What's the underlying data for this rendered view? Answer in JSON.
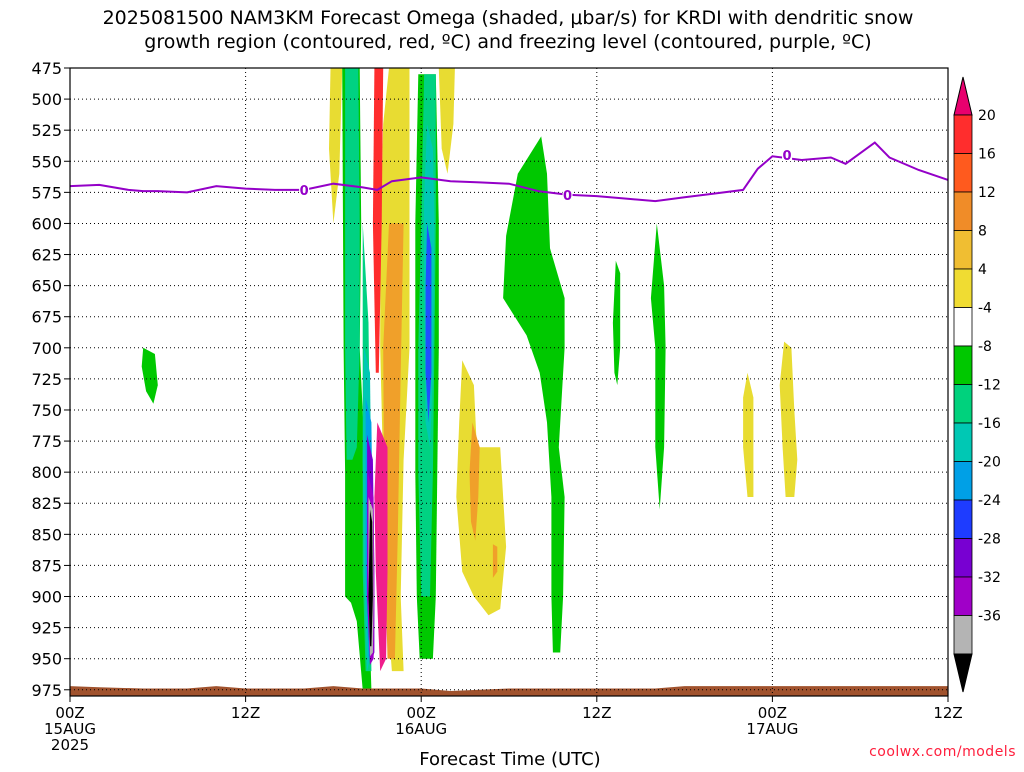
{
  "title": {
    "line1": "2025081500 NAM3KM Forecast Omega (shaded, μbar/s) for KRDI with dendritic snow",
    "line2": "growth region (contoured, red, ºC) and freezing level (contoured, purple, ºC)"
  },
  "xlabel": "Forecast Time (UTC)",
  "credit": "coolwx.com/models",
  "chart_data": {
    "type": "heatmap",
    "x_unit": "forecast hour from 2025-08-15 00Z",
    "xlim": [
      0,
      60
    ],
    "y_unit": "hPa",
    "ylim": [
      980,
      475
    ],
    "y_ticks": [
      475,
      500,
      525,
      550,
      575,
      600,
      625,
      650,
      675,
      700,
      725,
      750,
      775,
      800,
      825,
      850,
      875,
      900,
      925,
      950,
      975
    ],
    "x_ticks": [
      {
        "hour": 0,
        "label": "00Z",
        "sub": "15AUG",
        "sub2": "2025"
      },
      {
        "hour": 12,
        "label": "12Z",
        "sub": "",
        "sub2": ""
      },
      {
        "hour": 24,
        "label": "00Z",
        "sub": "16AUG",
        "sub2": ""
      },
      {
        "hour": 36,
        "label": "12Z",
        "sub": "",
        "sub2": ""
      },
      {
        "hour": 48,
        "label": "00Z",
        "sub": "17AUG",
        "sub2": ""
      },
      {
        "hour": 60,
        "label": "12Z",
        "sub": "",
        "sub2": ""
      }
    ],
    "grid": true,
    "colorbar": {
      "levels": [
        "20",
        "16",
        "12",
        "8",
        "4",
        "-4",
        "-8",
        "-12",
        "-16",
        "-20",
        "-24",
        "-28",
        "-32",
        "-36"
      ],
      "colors": [
        "#e8006e",
        "#ff2d2d",
        "#ff5a1e",
        "#f08c28",
        "#f0be32",
        "#f0dc32",
        "#ffffff",
        "#00c800",
        "#00d27d",
        "#00c8b4",
        "#00a0e6",
        "#1e3cff",
        "#7800d2",
        "#a000c8",
        "#b4b4b4",
        "#000000"
      ]
    },
    "omega_regions": [
      {
        "name": "yellow-a",
        "color": "#e8dc32",
        "pts": [
          [
            17.8,
            475
          ],
          [
            18.6,
            475
          ],
          [
            18.4,
            560
          ],
          [
            18.0,
            600
          ],
          [
            17.7,
            540
          ]
        ]
      },
      {
        "name": "yellow-b",
        "color": "#e8dc32",
        "pts": [
          [
            21.8,
            475
          ],
          [
            23.2,
            475
          ],
          [
            23.2,
            600
          ],
          [
            23.2,
            700
          ],
          [
            22.8,
            790
          ],
          [
            22.6,
            900
          ],
          [
            22.8,
            960
          ],
          [
            22.0,
            960
          ],
          [
            21.6,
            900
          ],
          [
            21.4,
            800
          ],
          [
            21.2,
            700
          ],
          [
            21.2,
            600
          ],
          [
            21.4,
            520
          ]
        ]
      },
      {
        "name": "yellow-c",
        "color": "#e8dc32",
        "pts": [
          [
            25.2,
            475
          ],
          [
            26.3,
            475
          ],
          [
            26.2,
            520
          ],
          [
            25.8,
            560
          ],
          [
            25.4,
            540
          ]
        ]
      },
      {
        "name": "yellow-d",
        "color": "#e8dc32",
        "pts": [
          [
            26.8,
            710
          ],
          [
            27.6,
            730
          ],
          [
            27.8,
            780
          ],
          [
            29.4,
            780
          ],
          [
            29.8,
            860
          ],
          [
            29.4,
            910
          ],
          [
            28.6,
            915
          ],
          [
            27.6,
            900
          ],
          [
            26.8,
            880
          ],
          [
            26.4,
            820
          ],
          [
            26.6,
            760
          ]
        ]
      },
      {
        "name": "yellow-e",
        "color": "#e8dc32",
        "pts": [
          [
            46.3,
            720
          ],
          [
            46.7,
            740
          ],
          [
            46.7,
            820
          ],
          [
            46.3,
            820
          ],
          [
            46.0,
            780
          ],
          [
            46.0,
            740
          ]
        ]
      },
      {
        "name": "yellow-f",
        "color": "#e8dc32",
        "pts": [
          [
            48.8,
            695
          ],
          [
            49.3,
            700
          ],
          [
            49.5,
            750
          ],
          [
            49.7,
            790
          ],
          [
            49.5,
            820
          ],
          [
            48.9,
            820
          ],
          [
            48.7,
            780
          ],
          [
            48.5,
            730
          ]
        ]
      },
      {
        "name": "orange-a",
        "color": "#f0a02a",
        "pts": [
          [
            21.8,
            600
          ],
          [
            22.8,
            600
          ],
          [
            22.6,
            720
          ],
          [
            22.4,
            850
          ],
          [
            22.2,
            950
          ],
          [
            21.7,
            950
          ],
          [
            21.5,
            860
          ],
          [
            21.4,
            700
          ]
        ]
      },
      {
        "name": "orange-b",
        "color": "#f0a02a",
        "pts": [
          [
            27.5,
            760
          ],
          [
            28.0,
            780
          ],
          [
            27.9,
            820
          ],
          [
            27.7,
            855
          ],
          [
            27.4,
            840
          ],
          [
            27.3,
            800
          ]
        ]
      },
      {
        "name": "orange-c",
        "color": "#f0a02a",
        "pts": [
          [
            28.9,
            858
          ],
          [
            29.2,
            860
          ],
          [
            29.2,
            880
          ],
          [
            28.9,
            885
          ]
        ]
      },
      {
        "name": "red-col",
        "color": "#ff2d2d",
        "pts": [
          [
            20.8,
            475
          ],
          [
            21.4,
            475
          ],
          [
            21.3,
            600
          ],
          [
            21.1,
            720
          ],
          [
            20.9,
            720
          ],
          [
            20.7,
            600
          ]
        ]
      },
      {
        "name": "pink-col",
        "color": "#f01e8c",
        "pts": [
          [
            21.0,
            760
          ],
          [
            21.7,
            780
          ],
          [
            21.7,
            880
          ],
          [
            21.6,
            950
          ],
          [
            21.2,
            960
          ],
          [
            20.9,
            880
          ],
          [
            20.8,
            820
          ]
        ]
      },
      {
        "name": "green-a",
        "color": "#00c800",
        "pts": [
          [
            5.0,
            700
          ],
          [
            5.8,
            705
          ],
          [
            6.0,
            730
          ],
          [
            5.7,
            745
          ],
          [
            5.2,
            735
          ],
          [
            4.9,
            715
          ]
        ]
      },
      {
        "name": "green-b",
        "color": "#00c800",
        "pts": [
          [
            18.6,
            475
          ],
          [
            19.8,
            475
          ],
          [
            19.9,
            600
          ],
          [
            19.8,
            700
          ],
          [
            20.2,
            800
          ],
          [
            20.4,
            900
          ],
          [
            20.6,
            975
          ],
          [
            20.0,
            975
          ],
          [
            19.6,
            920
          ],
          [
            19.2,
            905
          ],
          [
            18.8,
            900
          ],
          [
            18.8,
            800
          ],
          [
            18.7,
            700
          ]
        ]
      },
      {
        "name": "green-c",
        "color": "#00c800",
        "pts": [
          [
            23.8,
            480
          ],
          [
            25.0,
            480
          ],
          [
            25.2,
            600
          ],
          [
            25.2,
            700
          ],
          [
            25.1,
            800
          ],
          [
            25.0,
            900
          ],
          [
            24.8,
            950
          ],
          [
            23.9,
            950
          ],
          [
            23.7,
            900
          ],
          [
            23.6,
            800
          ],
          [
            23.6,
            700
          ],
          [
            23.6,
            600
          ]
        ]
      },
      {
        "name": "green-d",
        "color": "#00c800",
        "pts": [
          [
            29.8,
            610
          ],
          [
            30.6,
            560
          ],
          [
            32.2,
            530
          ],
          [
            32.6,
            560
          ],
          [
            32.8,
            620
          ],
          [
            33.8,
            660
          ],
          [
            33.8,
            700
          ],
          [
            33.4,
            780
          ],
          [
            33.8,
            820
          ],
          [
            33.7,
            900
          ],
          [
            33.5,
            945
          ],
          [
            33.0,
            945
          ],
          [
            32.9,
            900
          ],
          [
            32.9,
            820
          ],
          [
            32.6,
            760
          ],
          [
            32.1,
            720
          ],
          [
            31.2,
            690
          ],
          [
            29.6,
            660
          ]
        ]
      },
      {
        "name": "green-e",
        "color": "#00c800",
        "pts": [
          [
            37.3,
            630
          ],
          [
            37.6,
            640
          ],
          [
            37.6,
            700
          ],
          [
            37.4,
            730
          ],
          [
            37.2,
            720
          ],
          [
            37.1,
            680
          ]
        ]
      },
      {
        "name": "green-f",
        "color": "#00c800",
        "pts": [
          [
            40.1,
            600
          ],
          [
            40.6,
            650
          ],
          [
            40.7,
            700
          ],
          [
            40.6,
            780
          ],
          [
            40.3,
            830
          ],
          [
            40.0,
            780
          ],
          [
            40.0,
            700
          ],
          [
            39.7,
            660
          ]
        ]
      },
      {
        "name": "teal-a",
        "color": "#00d282",
        "pts": [
          [
            18.8,
            475
          ],
          [
            19.7,
            475
          ],
          [
            19.8,
            600
          ],
          [
            19.8,
            700
          ],
          [
            19.6,
            780
          ],
          [
            19.3,
            790
          ],
          [
            18.9,
            790
          ],
          [
            18.8,
            700
          ],
          [
            18.8,
            600
          ]
        ]
      },
      {
        "name": "teal-b",
        "color": "#00d282",
        "pts": [
          [
            20.0,
            600
          ],
          [
            20.4,
            680
          ],
          [
            20.5,
            780
          ],
          [
            20.5,
            880
          ],
          [
            20.6,
            960
          ],
          [
            20.2,
            960
          ],
          [
            20.0,
            880
          ],
          [
            20.0,
            760
          ]
        ]
      },
      {
        "name": "teal-c",
        "color": "#00d282",
        "pts": [
          [
            24.2,
            480
          ],
          [
            25.0,
            480
          ],
          [
            25.0,
            600
          ],
          [
            24.9,
            700
          ],
          [
            24.8,
            800
          ],
          [
            24.6,
            900
          ],
          [
            24.0,
            900
          ],
          [
            23.8,
            800
          ],
          [
            23.8,
            700
          ],
          [
            24.0,
            600
          ]
        ]
      },
      {
        "name": "cyan-a",
        "color": "#00c8b4",
        "pts": [
          [
            20.1,
            700
          ],
          [
            20.5,
            720
          ],
          [
            20.6,
            820
          ],
          [
            20.7,
            940
          ],
          [
            20.3,
            960
          ],
          [
            20.1,
            880
          ],
          [
            20.0,
            790
          ]
        ]
      },
      {
        "name": "cyan-b",
        "color": "#00c8b4",
        "pts": [
          [
            24.4,
            520
          ],
          [
            24.8,
            540
          ],
          [
            24.9,
            600
          ],
          [
            24.8,
            720
          ],
          [
            24.6,
            780
          ],
          [
            24.3,
            760
          ],
          [
            24.2,
            650
          ],
          [
            24.2,
            580
          ]
        ]
      },
      {
        "name": "blue-a",
        "color": "#00a0e6",
        "pts": [
          [
            20.2,
            740
          ],
          [
            20.6,
            760
          ],
          [
            20.7,
            860
          ],
          [
            20.7,
            940
          ],
          [
            20.4,
            950
          ],
          [
            20.2,
            880
          ]
        ]
      },
      {
        "name": "blue-b",
        "color": "#1e50ff",
        "pts": [
          [
            24.4,
            600
          ],
          [
            24.7,
            620
          ],
          [
            24.7,
            720
          ],
          [
            24.5,
            760
          ],
          [
            24.3,
            720
          ],
          [
            24.3,
            650
          ]
        ]
      },
      {
        "name": "purple-a",
        "color": "#7800d2",
        "pts": [
          [
            20.3,
            770
          ],
          [
            20.7,
            790
          ],
          [
            20.8,
            880
          ],
          [
            20.8,
            945
          ],
          [
            20.5,
            955
          ],
          [
            20.3,
            900
          ]
        ]
      },
      {
        "name": "magenta-a",
        "color": "#a000c8",
        "pts": [
          [
            20.35,
            800
          ],
          [
            20.75,
            820
          ],
          [
            20.8,
            900
          ],
          [
            20.75,
            950
          ],
          [
            20.5,
            955
          ],
          [
            20.3,
            900
          ]
        ]
      },
      {
        "name": "gray-a",
        "color": "#b4b4b4",
        "pts": [
          [
            20.4,
            820
          ],
          [
            20.7,
            830
          ],
          [
            20.75,
            900
          ],
          [
            20.7,
            945
          ],
          [
            20.5,
            948
          ],
          [
            20.4,
            900
          ]
        ]
      },
      {
        "name": "black-a",
        "color": "#000000",
        "pts": [
          [
            20.5,
            830
          ],
          [
            20.65,
            840
          ],
          [
            20.7,
            900
          ],
          [
            20.6,
            940
          ],
          [
            20.5,
            940
          ],
          [
            20.4,
            900
          ]
        ]
      }
    ],
    "freezing_level": {
      "color": "#9400c8",
      "x": [
        0,
        2,
        4,
        5,
        6,
        8,
        10,
        12,
        14,
        16,
        18,
        20,
        21,
        22,
        24,
        26,
        28,
        30,
        32,
        34,
        36,
        38,
        40,
        42,
        44,
        46,
        47,
        48,
        50,
        52,
        53,
        55,
        56,
        58,
        60
      ],
      "y": [
        570,
        569,
        573,
        574,
        574,
        575,
        570,
        572,
        573,
        573,
        568,
        571,
        573,
        566,
        563,
        566,
        567,
        568,
        574,
        577,
        578,
        580,
        582,
        579,
        576,
        573,
        556,
        546,
        549,
        547,
        552,
        535,
        547,
        557,
        565
      ],
      "labels": [
        {
          "x": 16,
          "y": 573,
          "text": "0"
        },
        {
          "x": 34,
          "y": 577,
          "text": "0"
        },
        {
          "x": 49,
          "y": 545,
          "text": "0"
        }
      ]
    },
    "terrain": {
      "color": "#a0522d",
      "x": [
        0,
        2,
        5,
        8,
        10,
        12,
        16,
        18,
        20,
        24,
        26,
        30,
        36,
        40,
        42,
        46,
        50,
        54,
        60
      ],
      "y": [
        972,
        973,
        974,
        974,
        972,
        974,
        974,
        972,
        974,
        974,
        976,
        974,
        974,
        974,
        972,
        972,
        972,
        972,
        972
      ]
    }
  }
}
